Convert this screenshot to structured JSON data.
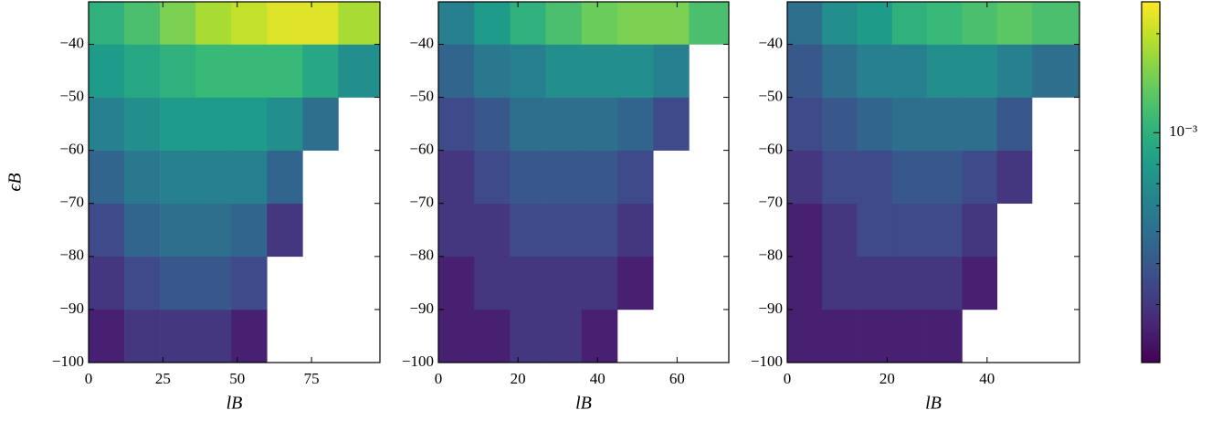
{
  "chart_data": [
    {
      "type": "hist2d",
      "x_label": "lB",
      "y_label": "ϵB",
      "colormap": "viridis",
      "xlim": [
        0,
        98
      ],
      "ylim": [
        -100,
        -32
      ],
      "xticks": [
        0,
        25,
        50,
        75
      ],
      "yticks": [
        -100,
        -90,
        -80,
        -70,
        -60,
        -50,
        -40
      ],
      "x_bins": [
        0,
        12,
        24,
        36,
        48,
        60,
        72,
        84,
        98
      ],
      "y_bins": [
        -100,
        -90,
        -80,
        -70,
        -60,
        -50,
        -40,
        -32
      ],
      "values": [
        [
          0.00025,
          0.0003,
          0.0003,
          0.0003,
          0.00025,
          null,
          null,
          null
        ],
        [
          0.0003,
          0.00035,
          0.0004,
          0.0004,
          0.00035,
          null,
          null,
          null
        ],
        [
          0.00035,
          0.00045,
          0.0005,
          0.0005,
          0.00045,
          0.0003,
          null,
          null
        ],
        [
          0.00045,
          0.00055,
          0.0006,
          0.0006,
          0.0006,
          0.00045,
          null,
          null
        ],
        [
          0.0006,
          0.0007,
          0.0008,
          0.0008,
          0.0008,
          0.0007,
          0.0005,
          null
        ],
        [
          0.0008,
          0.0009,
          0.001,
          0.0011,
          0.0011,
          0.0011,
          0.0009,
          0.0007
        ],
        [
          0.001,
          0.0012,
          0.0015,
          0.0018,
          0.002,
          0.0022,
          0.0022,
          0.0018
        ]
      ]
    },
    {
      "type": "hist2d",
      "x_label": "lB",
      "colormap": "viridis",
      "xlim": [
        0,
        73
      ],
      "ylim": [
        -100,
        -32
      ],
      "xticks": [
        0,
        20,
        40,
        60
      ],
      "yticks": [
        -100,
        -90,
        -80,
        -70,
        -60,
        -50,
        -40
      ],
      "x_bins": [
        0,
        9,
        18,
        27,
        36,
        45,
        54,
        63,
        73
      ],
      "y_bins": [
        -100,
        -90,
        -80,
        -70,
        -60,
        -50,
        -40,
        -32
      ],
      "values": [
        [
          0.00025,
          0.00025,
          0.0003,
          0.0003,
          0.00025,
          null,
          null,
          null
        ],
        [
          0.00025,
          0.0003,
          0.0003,
          0.0003,
          0.0003,
          0.00025,
          null,
          null
        ],
        [
          0.0003,
          0.0003,
          0.00035,
          0.00035,
          0.00035,
          0.0003,
          null,
          null
        ],
        [
          0.0003,
          0.00035,
          0.0004,
          0.0004,
          0.0004,
          0.00035,
          null,
          null
        ],
        [
          0.00035,
          0.0004,
          0.0005,
          0.0005,
          0.0005,
          0.00045,
          0.00035,
          null
        ],
        [
          0.00045,
          0.00055,
          0.0006,
          0.0007,
          0.0007,
          0.0007,
          0.0006,
          null
        ],
        [
          0.0006,
          0.0008,
          0.001,
          0.0012,
          0.0014,
          0.0015,
          0.0015,
          0.0012
        ]
      ]
    },
    {
      "type": "hist2d",
      "x_label": "lB",
      "colormap": "viridis",
      "xlim": [
        0,
        58.5
      ],
      "ylim": [
        -100,
        -32
      ],
      "xticks": [
        0,
        20,
        40
      ],
      "yticks": [
        -100,
        -90,
        -80,
        -70,
        -60,
        -50,
        -40
      ],
      "x_bins": [
        0,
        7,
        14,
        21,
        28,
        35,
        42,
        49,
        58.5
      ],
      "y_bins": [
        -100,
        -90,
        -80,
        -70,
        -60,
        -50,
        -40,
        -32
      ],
      "values": [
        [
          0.00025,
          0.00025,
          0.00025,
          0.00025,
          0.00025,
          null,
          null,
          null
        ],
        [
          0.00025,
          0.0003,
          0.0003,
          0.0003,
          0.0003,
          0.00025,
          null,
          null
        ],
        [
          0.00025,
          0.0003,
          0.00035,
          0.00035,
          0.00035,
          0.0003,
          null,
          null
        ],
        [
          0.0003,
          0.00035,
          0.00035,
          0.0004,
          0.0004,
          0.00035,
          0.0003,
          null
        ],
        [
          0.00035,
          0.0004,
          0.00045,
          0.0005,
          0.0005,
          0.0005,
          0.0004,
          null
        ],
        [
          0.0004,
          0.0005,
          0.0006,
          0.0006,
          0.0007,
          0.0007,
          0.0006,
          0.0005
        ],
        [
          0.0005,
          0.0007,
          0.0008,
          0.001,
          0.0011,
          0.0012,
          0.0013,
          0.0012
        ]
      ]
    }
  ],
  "colorbar": {
    "type": "colorbar",
    "colormap": "viridis",
    "log": true,
    "clim": [
      0.0002,
      0.0025
    ],
    "ticks": [
      {
        "value": 0.001,
        "label": "10⁻³"
      }
    ],
    "minor_ticks": [
      0.0002,
      0.0003,
      0.0004,
      0.0005,
      0.0006,
      0.0007,
      0.0008,
      0.0009,
      0.002
    ]
  }
}
